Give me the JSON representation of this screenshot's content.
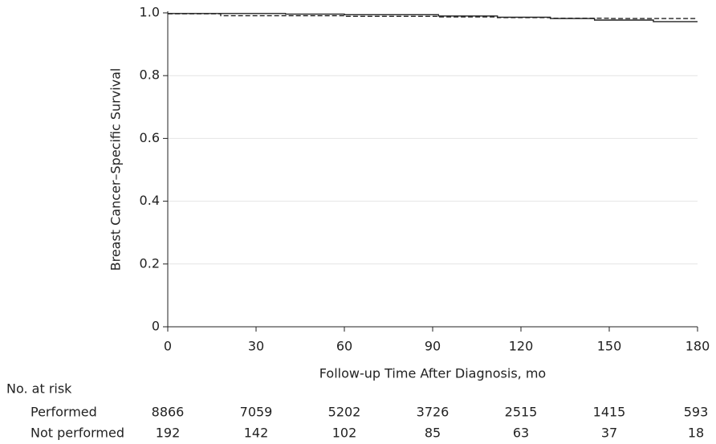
{
  "chart_data": {
    "type": "step",
    "xlabel": "Follow-up Time After Diagnosis, mo",
    "ylabel": "Breast Cancer–Specific Survival",
    "xlim": [
      0,
      180
    ],
    "xticks": [
      0,
      30,
      60,
      90,
      120,
      150,
      180
    ],
    "ylim": [
      0,
      1
    ],
    "yticks": [
      0,
      0.2,
      0.4,
      0.6,
      0.8,
      {
        "value": 1,
        "label": "1.0"
      }
    ],
    "grid": true,
    "series": [
      {
        "color": "#222222",
        "dash": "solid",
        "x": [
          0,
          40,
          60,
          92,
          112,
          130,
          145,
          165,
          180
        ],
        "values": [
          0.998,
          0.996,
          0.994,
          0.99,
          0.986,
          0.982,
          0.977,
          0.972,
          0.972
        ]
      },
      {
        "color": "#222222",
        "dash": "dashed",
        "x": [
          0,
          18,
          60,
          92,
          112,
          130,
          150,
          180
        ],
        "values": [
          0.997,
          0.991,
          0.989,
          0.987,
          0.985,
          0.983,
          0.982,
          0.982
        ]
      }
    ],
    "risk_table": {
      "title": "No. at risk",
      "rows": [
        {
          "label": "Performed",
          "values": [
            8866,
            7059,
            5202,
            3726,
            2515,
            1415,
            593
          ]
        },
        {
          "label": "Not performed",
          "values": [
            192,
            142,
            102,
            85,
            63,
            37,
            18
          ]
        }
      ]
    }
  }
}
